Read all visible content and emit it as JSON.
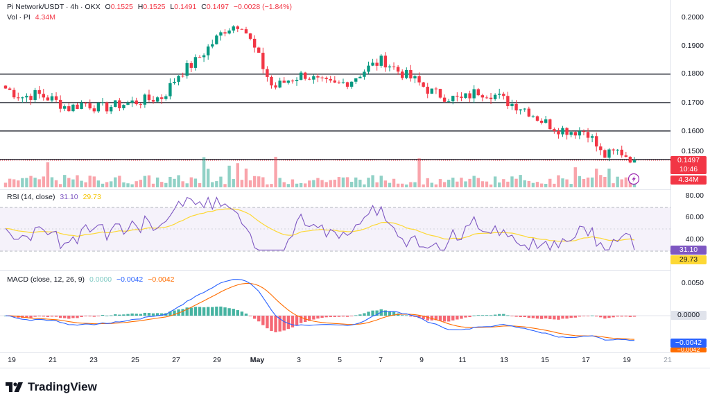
{
  "header": {
    "symbol": "Pi Network/USDT · 4h · OKX",
    "open_label": "O",
    "open": "0.1525",
    "high_label": "H",
    "high": "0.1525",
    "low_label": "L",
    "low": "0.1491",
    "close_label": "C",
    "close": "0.1497",
    "change": "−0.0028 (−1.84%)",
    "vol_label": "Vol · PI",
    "vol": "4.34M"
  },
  "rsi_header": {
    "label": "RSI (14, close)",
    "rsi": "31.10",
    "ma": "29.73"
  },
  "macd_header": {
    "label": "MACD (close, 12, 26, 9)",
    "hist": "0.0000",
    "macd": "−0.0042",
    "signal": "−0.0042"
  },
  "price_axis": [
    "0.2000",
    "0.1900",
    "0.1800",
    "0.1700",
    "0.1600",
    "0.1500"
  ],
  "price_tag": {
    "price": "0.1497",
    "countdown": "10:46",
    "volume": "4.34M"
  },
  "rsi_axis": [
    "80.00",
    "60.00",
    "40.00"
  ],
  "rsi_tags": {
    "rsi": "31.10",
    "ma": "29.73"
  },
  "macd_axis": [
    "0.0050",
    "0.0000"
  ],
  "macd_tags": {
    "macd": "−0.0042",
    "signal": "−0.0042"
  },
  "x_labels": [
    "19",
    "21",
    "23",
    "25",
    "27",
    "29",
    "May",
    "3",
    "5",
    "7",
    "9",
    "11",
    "13",
    "15",
    "17",
    "19",
    "21"
  ],
  "brand": "TradingView",
  "colors": {
    "up": "#089981",
    "down": "#f23645",
    "rsi": "#7e57c2",
    "rsi_ma": "#fdd835",
    "macd": "#2962ff",
    "signal": "#ff6d00"
  },
  "chart_data": {
    "type": "candlestick",
    "pair": "PI/USDT",
    "interval": "4h",
    "horizontal_levels": [
      0.18,
      0.17,
      0.16,
      0.15
    ],
    "price_ylim": [
      0.145,
      0.2
    ],
    "close_series_approx": [
      0.175,
      0.172,
      0.173,
      0.171,
      0.168,
      0.17,
      0.168,
      0.169,
      0.17,
      0.171,
      0.172,
      0.18,
      0.184,
      0.19,
      0.196,
      0.198,
      0.187,
      0.175,
      0.178,
      0.18,
      0.177,
      0.176,
      0.178,
      0.182,
      0.185,
      0.181,
      0.178,
      0.174,
      0.172,
      0.171,
      0.174,
      0.173,
      0.17,
      0.168,
      0.164,
      0.161,
      0.16,
      0.16,
      0.151,
      0.153,
      0.1497
    ],
    "rsi_ylim": [
      20,
      85
    ],
    "macd_ylim": [
      -0.0055,
      0.0065
    ]
  }
}
